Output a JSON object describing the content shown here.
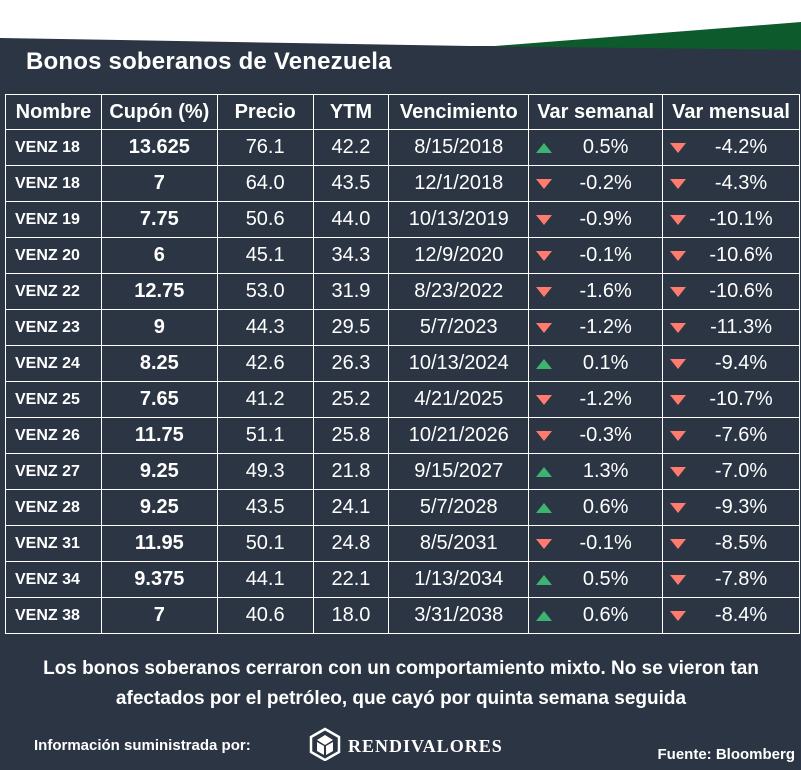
{
  "title": "Bonos soberanos de Venezuela",
  "columns": [
    "Nombre",
    "Cupón (%)",
    "Precio",
    "YTM",
    "Vencimiento",
    "Var semanal",
    "Var mensual"
  ],
  "colors": {
    "background": "#2b3543",
    "up": "#3cb371",
    "down": "#ff7b6e",
    "accent_green": "#0d5a2d"
  },
  "rows": [
    {
      "name": "VENZ 18",
      "coupon": "13.625",
      "price": "76.1",
      "ytm": "42.2",
      "maturity": "8/15/2018",
      "weekly": "0.5%",
      "weekly_dir": "up",
      "monthly": "-4.2%",
      "monthly_dir": "down"
    },
    {
      "name": "VENZ 18",
      "coupon": "7",
      "price": "64.0",
      "ytm": "43.5",
      "maturity": "12/1/2018",
      "weekly": "-0.2%",
      "weekly_dir": "down",
      "monthly": "-4.3%",
      "monthly_dir": "down"
    },
    {
      "name": "VENZ 19",
      "coupon": "7.75",
      "price": "50.6",
      "ytm": "44.0",
      "maturity": "10/13/2019",
      "weekly": "-0.9%",
      "weekly_dir": "down",
      "monthly": "-10.1%",
      "monthly_dir": "down"
    },
    {
      "name": "VENZ 20",
      "coupon": "6",
      "price": "45.1",
      "ytm": "34.3",
      "maturity": "12/9/2020",
      "weekly": "-0.1%",
      "weekly_dir": "down",
      "monthly": "-10.6%",
      "monthly_dir": "down"
    },
    {
      "name": "VENZ 22",
      "coupon": "12.75",
      "price": "53.0",
      "ytm": "31.9",
      "maturity": "8/23/2022",
      "weekly": "-1.6%",
      "weekly_dir": "down",
      "monthly": "-10.6%",
      "monthly_dir": "down"
    },
    {
      "name": "VENZ 23",
      "coupon": "9",
      "price": "44.3",
      "ytm": "29.5",
      "maturity": "5/7/2023",
      "weekly": "-1.2%",
      "weekly_dir": "down",
      "monthly": "-11.3%",
      "monthly_dir": "down"
    },
    {
      "name": "VENZ 24",
      "coupon": "8.25",
      "price": "42.6",
      "ytm": "26.3",
      "maturity": "10/13/2024",
      "weekly": "0.1%",
      "weekly_dir": "up",
      "monthly": "-9.4%",
      "monthly_dir": "down"
    },
    {
      "name": "VENZ 25",
      "coupon": "7.65",
      "price": "41.2",
      "ytm": "25.2",
      "maturity": "4/21/2025",
      "weekly": "-1.2%",
      "weekly_dir": "down",
      "monthly": "-10.7%",
      "monthly_dir": "down"
    },
    {
      "name": "VENZ 26",
      "coupon": "11.75",
      "price": "51.1",
      "ytm": "25.8",
      "maturity": "10/21/2026",
      "weekly": "-0.3%",
      "weekly_dir": "down",
      "monthly": "-7.6%",
      "monthly_dir": "down"
    },
    {
      "name": "VENZ 27",
      "coupon": "9.25",
      "price": "49.3",
      "ytm": "21.8",
      "maturity": "9/15/2027",
      "weekly": "1.3%",
      "weekly_dir": "up",
      "monthly": "-7.0%",
      "monthly_dir": "down"
    },
    {
      "name": "VENZ 28",
      "coupon": "9.25",
      "price": "43.5",
      "ytm": "24.1",
      "maturity": "5/7/2028",
      "weekly": "0.6%",
      "weekly_dir": "up",
      "monthly": "-9.3%",
      "monthly_dir": "down"
    },
    {
      "name": "VENZ 31",
      "coupon": "11.95",
      "price": "50.1",
      "ytm": "24.8",
      "maturity": "8/5/2031",
      "weekly": "-0.1%",
      "weekly_dir": "down",
      "monthly": "-8.5%",
      "monthly_dir": "down"
    },
    {
      "name": "VENZ 34",
      "coupon": "9.375",
      "price": "44.1",
      "ytm": "22.1",
      "maturity": "1/13/2034",
      "weekly": "0.5%",
      "weekly_dir": "up",
      "monthly": "-7.8%",
      "monthly_dir": "down"
    },
    {
      "name": "VENZ 38",
      "coupon": "7",
      "price": "40.6",
      "ytm": "18.0",
      "maturity": "3/31/2038",
      "weekly": "0.6%",
      "weekly_dir": "up",
      "monthly": "-8.4%",
      "monthly_dir": "down"
    }
  ],
  "note_line1": "Los bonos soberanos cerraron con un comportamiento mixto. No se vieron tan",
  "note_line2": "afectados por el petróleo, que cayó por quinta semana seguida",
  "provided_by": "Información suministrada por:",
  "logo_text": "RENDIVALORES",
  "logo_icon": "cube-icon",
  "source": "Fuente: Bloomberg"
}
